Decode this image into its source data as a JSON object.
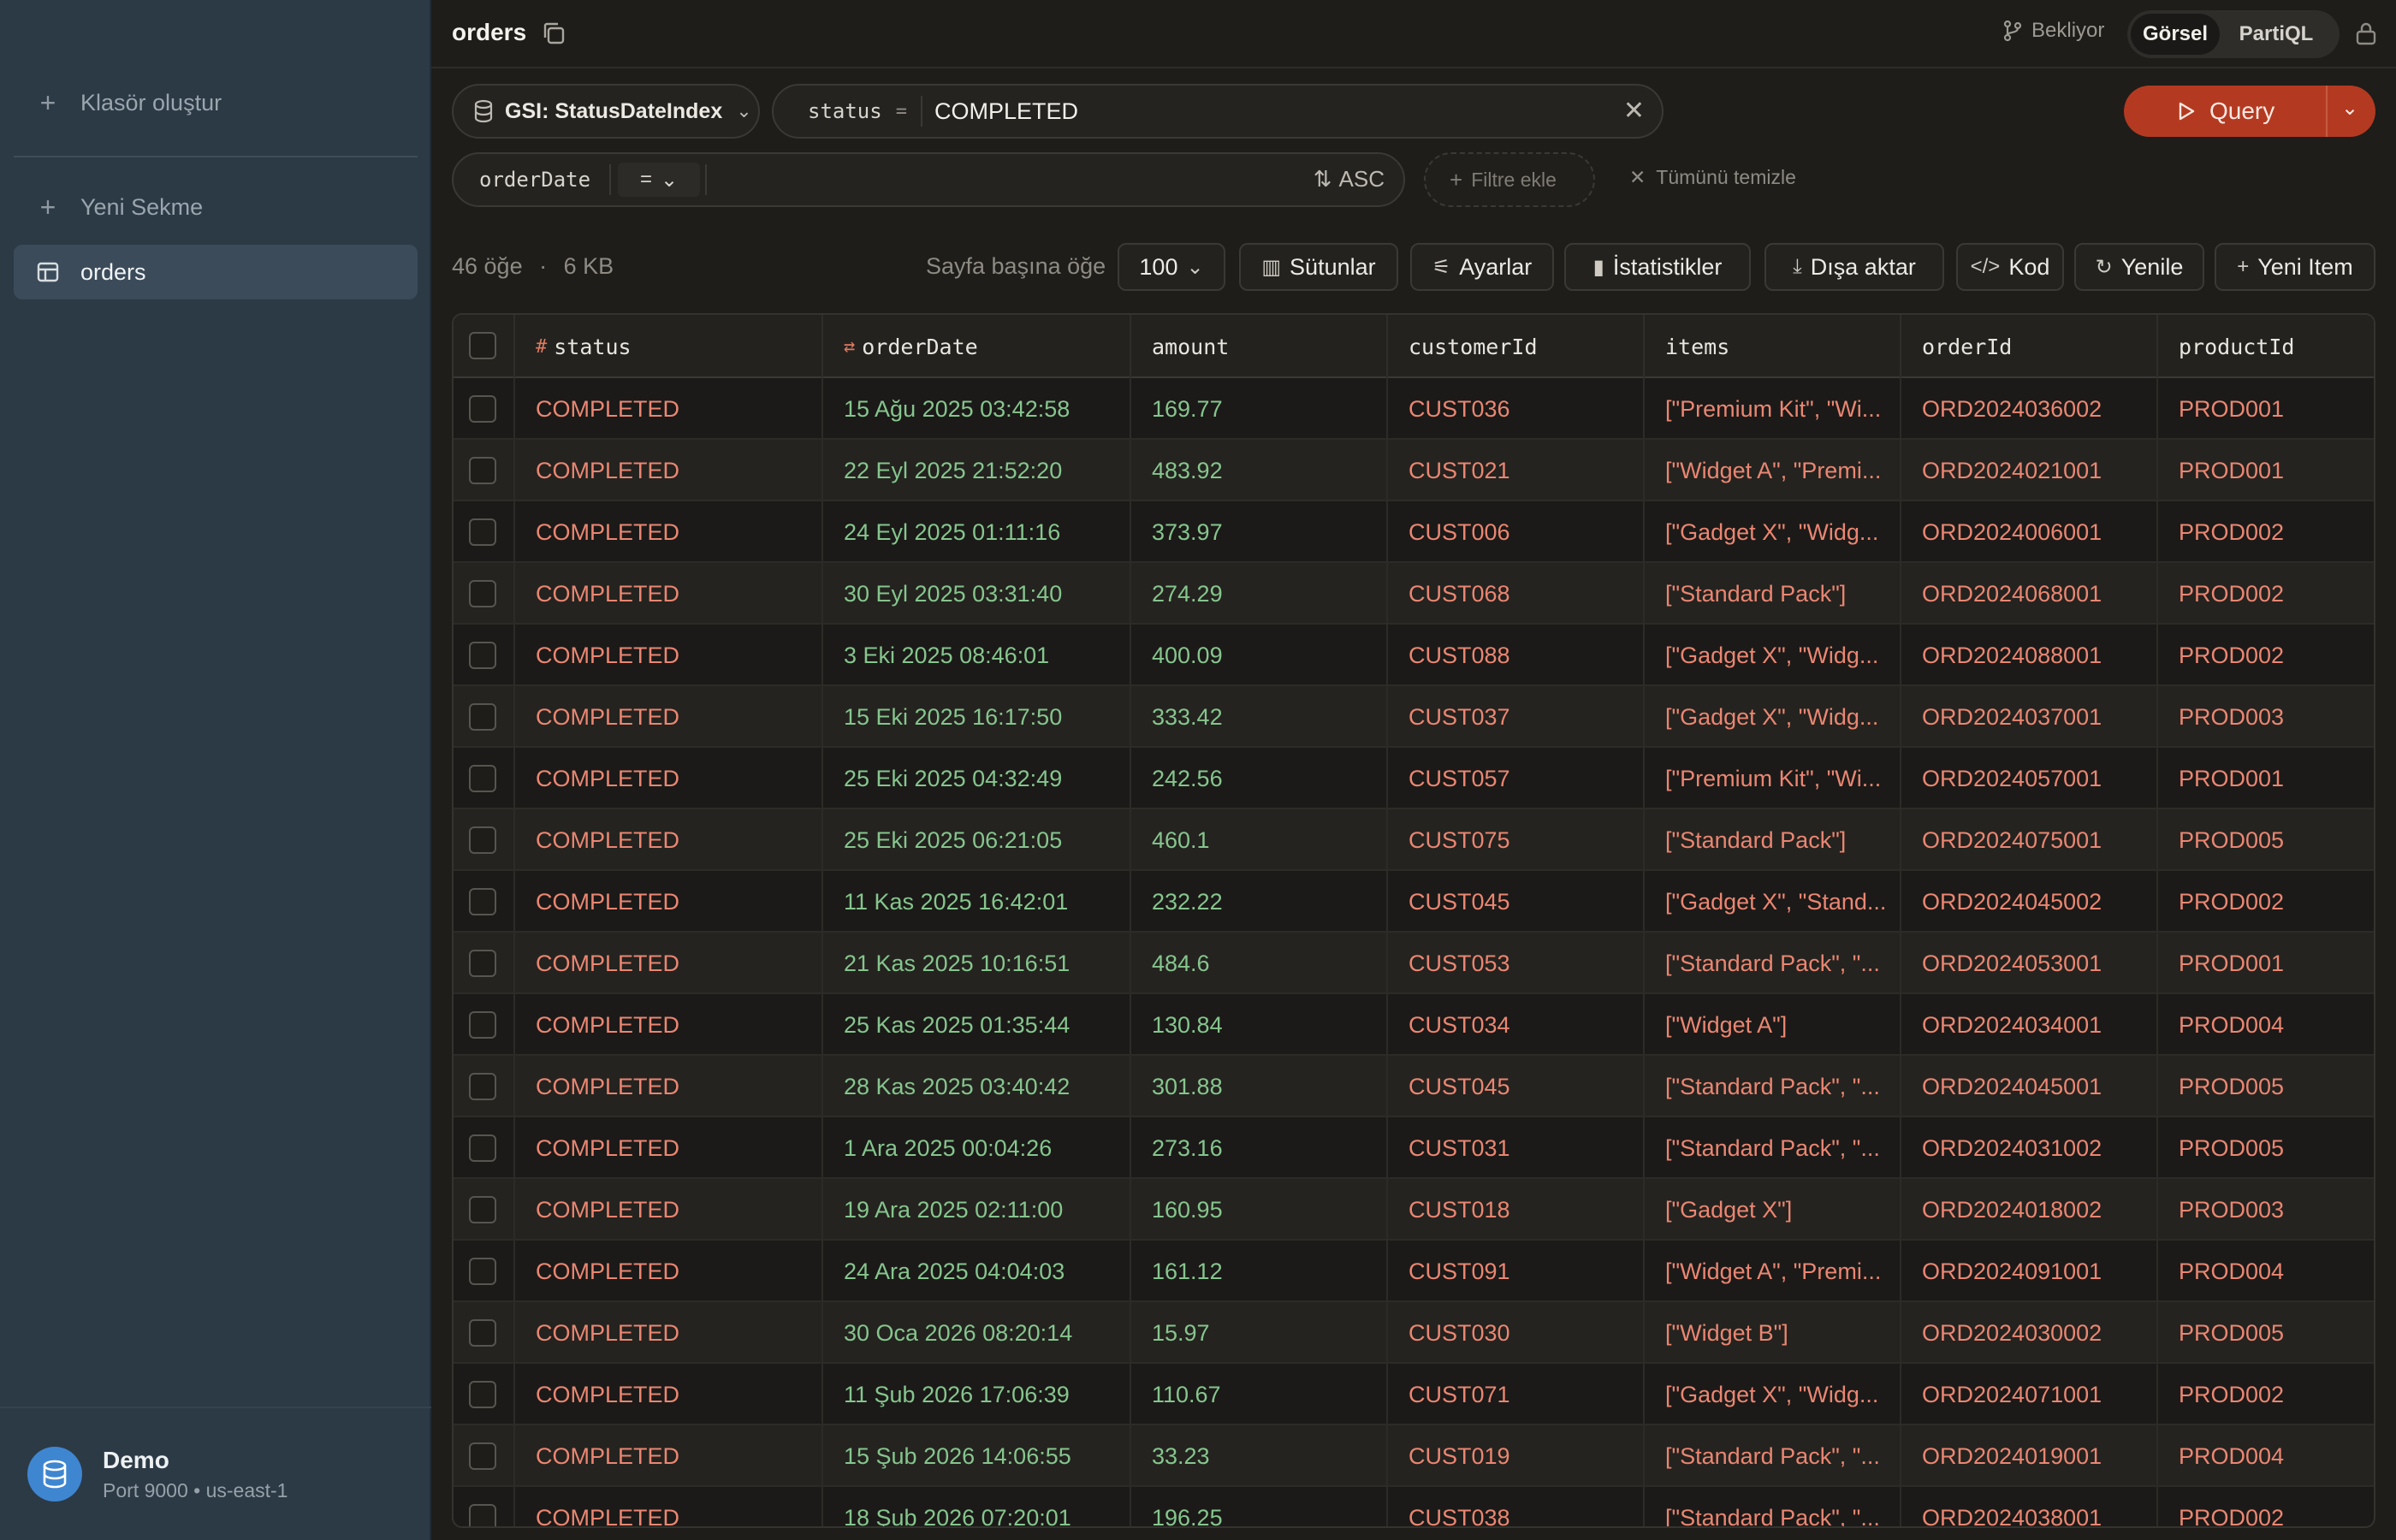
{
  "sidebar": {
    "create_folder": "Klasör oluştur",
    "new_tab": "Yeni Sekme",
    "active_table": "orders",
    "footer_title": "Demo",
    "footer_sub": "Port 9000 • us-east-1"
  },
  "topbar": {
    "title": "orders",
    "pending": "Bekliyor",
    "mode_visual": "Görsel",
    "mode_partiql": "PartiQL"
  },
  "query": {
    "index_label": "GSI: StatusDateIndex",
    "pk_name": "status",
    "pk_op": "=",
    "pk_value": "COMPLETED",
    "sk_name": "orderDate",
    "sk_op": "=",
    "sort": "ASC",
    "add_filter": "Filtre ekle",
    "clear_all": "Tümünü temizle",
    "run_label": "Query"
  },
  "toolbar": {
    "count": "46 öğe",
    "size": "6 KB",
    "per_page_label": "Sayfa başına öğe",
    "per_page_value": "100",
    "columns": "Sütunlar",
    "settings": "Ayarlar",
    "stats": "İstatistikler",
    "export": "Dışa aktar",
    "code": "Kod",
    "refresh": "Yenile",
    "new_item": "Yeni Item"
  },
  "table": {
    "columns": [
      "status",
      "orderDate",
      "amount",
      "customerId",
      "items",
      "orderId",
      "productId"
    ],
    "rows": [
      [
        "COMPLETED",
        "15 Ağu 2025 03:42:58",
        "169.77",
        "CUST036",
        "[\"Premium Kit\", \"Wi...",
        "ORD2024036002",
        "PROD001"
      ],
      [
        "COMPLETED",
        "22 Eyl 2025 21:52:20",
        "483.92",
        "CUST021",
        "[\"Widget A\", \"Premi...",
        "ORD2024021001",
        "PROD001"
      ],
      [
        "COMPLETED",
        "24 Eyl 2025 01:11:16",
        "373.97",
        "CUST006",
        "[\"Gadget X\", \"Widg...",
        "ORD2024006001",
        "PROD002"
      ],
      [
        "COMPLETED",
        "30 Eyl 2025 03:31:40",
        "274.29",
        "CUST068",
        "[\"Standard Pack\"]",
        "ORD2024068001",
        "PROD002"
      ],
      [
        "COMPLETED",
        "3 Eki 2025 08:46:01",
        "400.09",
        "CUST088",
        "[\"Gadget X\", \"Widg...",
        "ORD2024088001",
        "PROD002"
      ],
      [
        "COMPLETED",
        "15 Eki 2025 16:17:50",
        "333.42",
        "CUST037",
        "[\"Gadget X\", \"Widg...",
        "ORD2024037001",
        "PROD003"
      ],
      [
        "COMPLETED",
        "25 Eki 2025 04:32:49",
        "242.56",
        "CUST057",
        "[\"Premium Kit\", \"Wi...",
        "ORD2024057001",
        "PROD001"
      ],
      [
        "COMPLETED",
        "25 Eki 2025 06:21:05",
        "460.1",
        "CUST075",
        "[\"Standard Pack\"]",
        "ORD2024075001",
        "PROD005"
      ],
      [
        "COMPLETED",
        "11 Kas 2025 16:42:01",
        "232.22",
        "CUST045",
        "[\"Gadget X\", \"Stand...",
        "ORD2024045002",
        "PROD002"
      ],
      [
        "COMPLETED",
        "21 Kas 2025 10:16:51",
        "484.6",
        "CUST053",
        "[\"Standard Pack\", \"...",
        "ORD2024053001",
        "PROD001"
      ],
      [
        "COMPLETED",
        "25 Kas 2025 01:35:44",
        "130.84",
        "CUST034",
        "[\"Widget A\"]",
        "ORD2024034001",
        "PROD004"
      ],
      [
        "COMPLETED",
        "28 Kas 2025 03:40:42",
        "301.88",
        "CUST045",
        "[\"Standard Pack\", \"...",
        "ORD2024045001",
        "PROD005"
      ],
      [
        "COMPLETED",
        "1 Ara 2025 00:04:26",
        "273.16",
        "CUST031",
        "[\"Standard Pack\", \"...",
        "ORD2024031002",
        "PROD005"
      ],
      [
        "COMPLETED",
        "19 Ara 2025 02:11:00",
        "160.95",
        "CUST018",
        "[\"Gadget X\"]",
        "ORD2024018002",
        "PROD003"
      ],
      [
        "COMPLETED",
        "24 Ara 2025 04:04:03",
        "161.12",
        "CUST091",
        "[\"Widget A\", \"Premi...",
        "ORD2024091001",
        "PROD004"
      ],
      [
        "COMPLETED",
        "30 Oca 2026 08:20:14",
        "15.97",
        "CUST030",
        "[\"Widget B\"]",
        "ORD2024030002",
        "PROD005"
      ],
      [
        "COMPLETED",
        "11 Şub 2026 17:06:39",
        "110.67",
        "CUST071",
        "[\"Gadget X\", \"Widg...",
        "ORD2024071001",
        "PROD002"
      ],
      [
        "COMPLETED",
        "15 Şub 2026 14:06:55",
        "33.23",
        "CUST019",
        "[\"Standard Pack\", \"...",
        "ORD2024019001",
        "PROD004"
      ],
      [
        "COMPLETED",
        "18 Şub 2026 07:20:01",
        "196.25",
        "CUST038",
        "[\"Standard Pack\", \"...",
        "ORD2024038001",
        "PROD002"
      ]
    ]
  },
  "colors": {
    "accent": "#b33a21",
    "status_text": "#ea8672",
    "date_text": "#86c58e"
  }
}
